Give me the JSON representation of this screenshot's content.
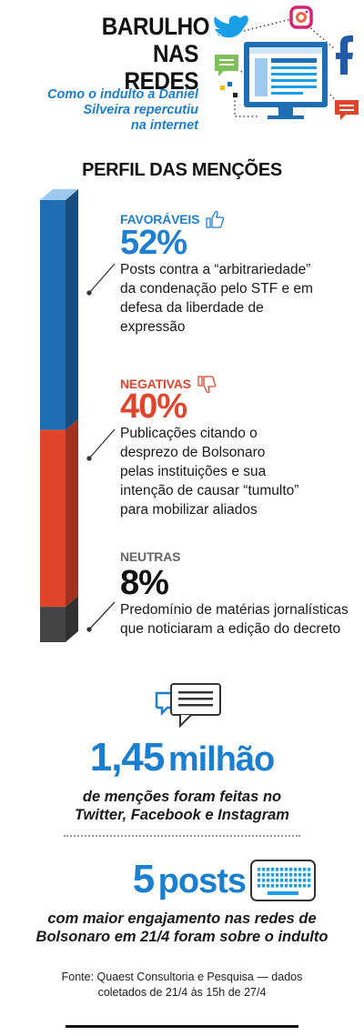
{
  "header": {
    "title_lines": [
      "BARULHO",
      "NAS REDES"
    ],
    "subtitle_lines": [
      "Como o indulto a Daniel",
      "Silveira repercutiu",
      "na internet"
    ]
  },
  "section_title": "PERFIL DAS MENÇÕES",
  "chart_data": {
    "type": "bar",
    "stacked": true,
    "orientation": "vertical",
    "title": "PERFIL DAS MENÇÕES",
    "categories": [
      "FAVORÁVEIS",
      "NEGATIVAS",
      "NEUTRAS"
    ],
    "values": [
      52,
      40,
      8
    ],
    "units": "%",
    "value_labels": [
      "52%",
      "40%",
      "8%"
    ],
    "colors": [
      "#1f6db3",
      "#e0452b",
      "#444444"
    ],
    "descriptions": [
      [
        "Posts contra a “arbitrariedade”",
        "da condenação pelo STF e em",
        "defesa da liberdade de",
        "expressão"
      ],
      [
        "Publicações citando o",
        "desprezo de Bolsonaro",
        "pelas instituições e sua",
        "intenção de causar “tumulto”",
        "para mobilizar aliados"
      ],
      [
        "Predomínio de matérias jornalísticas",
        "que noticiaram a edição do decreto"
      ]
    ],
    "label_colors": [
      "#1f7fd0",
      "#e0452b",
      "#666666"
    ],
    "icons": [
      "thumbs-up-icon",
      "thumbs-down-icon",
      ""
    ]
  },
  "stats": [
    {
      "value": "1,45",
      "unit": "milhão",
      "lines": [
        "de menções foram feitas no",
        "Twitter, Facebook e Instagram"
      ],
      "icon": "chat-bubbles-icon"
    },
    {
      "value": "5",
      "unit": "posts",
      "lines": [
        "com maior engajamento nas redes de",
        "Bolsonaro em 21/4 foram sobre o indulto"
      ],
      "icon": "keyboard-icon"
    }
  ],
  "source_lines": [
    "Fonte: Quaest Consultoria e Pesquisa — dados",
    "coletados de 21/4 às 15h de 27/4"
  ],
  "accent_color": "#1a7fd0"
}
